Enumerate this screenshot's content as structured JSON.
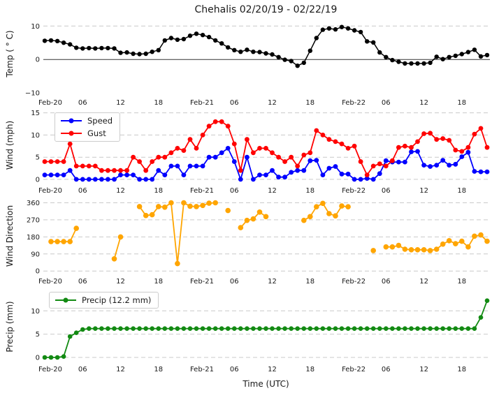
{
  "title": "Chehalis 02/20/19 - 02/22/19",
  "x_axis": {
    "label": "Time (UTC)",
    "tick_hours": [
      0,
      6,
      12,
      18,
      24,
      30,
      36,
      42,
      48,
      54,
      60,
      66
    ],
    "tick_labels": [
      "Feb-20",
      "06",
      "12",
      "18",
      "Feb-21",
      "06",
      "12",
      "18",
      "Feb-22",
      "06",
      "12",
      "18"
    ],
    "x_unit": "hours since Feb-20 00:00 UTC, 1 point per hour"
  },
  "colors": {
    "temp": "#000000",
    "speed": "#0000ff",
    "gust": "#ff0000",
    "wind_direction": "#ffa500",
    "precip": "#128a12",
    "grid": "#c9c9c9",
    "zero_line": "#333333",
    "text": "#191919",
    "legend_border": "#cccccc"
  },
  "chart_data": [
    {
      "id": "temp",
      "type": "line",
      "ylabel": "Temp ( ° C)",
      "yticks": [
        -10,
        0,
        10
      ],
      "ylim": [
        -10,
        13.2
      ],
      "grid_ticks": [
        10
      ],
      "zero_line": 0,
      "legend": null,
      "series": [
        {
          "name": "Temp",
          "legend_label": "Temp",
          "color": "#000000",
          "values": [
            5.6,
            5.7,
            5.5,
            5.0,
            4.5,
            3.5,
            3.3,
            3.4,
            3.3,
            3.4,
            3.4,
            3.3,
            2.0,
            2.1,
            1.7,
            1.6,
            1.7,
            2.3,
            2.8,
            5.7,
            6.4,
            5.9,
            6.1,
            7.1,
            7.7,
            7.3,
            6.7,
            5.7,
            4.8,
            3.6,
            2.8,
            2.3,
            2.9,
            2.3,
            2.2,
            1.8,
            1.5,
            0.7,
            -0.1,
            -0.5,
            -1.9,
            -1.0,
            2.6,
            6.4,
            8.9,
            9.3,
            9.0,
            9.7,
            9.3,
            8.7,
            8.2,
            5.4,
            5.1,
            2.1,
            0.7,
            -0.2,
            -0.7,
            -1.2,
            -1.2,
            -1.2,
            -1.2,
            -1.0,
            0.8,
            0.1,
            0.7,
            1.1,
            1.6,
            2.2,
            2.9,
            0.9,
            1.3
          ]
        }
      ]
    },
    {
      "id": "wind",
      "type": "line",
      "ylabel": "Wind (mph)",
      "yticks": [
        0,
        5,
        10,
        15
      ],
      "ylim": [
        -0.8,
        16.2
      ],
      "grid_ticks": [
        0,
        5,
        10,
        15
      ],
      "zero_line": null,
      "legend": {
        "position": "upper-left",
        "labels": [
          "Speed",
          "Gust"
        ]
      },
      "series": [
        {
          "name": "Speed",
          "legend_label": "Speed",
          "color": "#0000ff",
          "values": [
            1,
            1,
            1,
            1,
            2,
            0,
            0,
            0,
            0,
            0,
            0,
            0,
            1,
            1,
            1,
            0,
            0,
            0,
            2,
            1,
            3,
            3,
            1,
            3,
            3,
            3,
            5,
            5,
            6,
            7,
            4,
            0,
            5,
            0,
            1,
            1,
            2,
            0.5,
            0.5,
            1.6,
            2,
            2,
            4.2,
            4.3,
            1,
            2.5,
            2.9,
            1.2,
            1.2,
            0,
            0,
            0.2,
            0,
            1.3,
            4.2,
            3.9,
            3.9,
            3.9,
            6.2,
            6.3,
            3.2,
            2.9,
            3.2,
            4.3,
            3.2,
            3.4,
            5.1,
            6.1,
            1.8,
            1.7,
            1.7
          ]
        },
        {
          "name": "Gust",
          "legend_label": "Gust",
          "color": "#ff0000",
          "values": [
            4,
            4,
            4,
            4,
            8,
            3,
            3,
            3,
            3,
            2,
            2,
            2,
            2,
            2,
            5,
            4,
            2,
            4,
            5,
            5,
            6,
            7,
            6.5,
            9,
            7,
            10,
            12,
            13,
            13,
            12,
            8,
            2,
            9,
            6,
            7,
            7,
            6,
            5,
            4,
            5,
            3,
            5.5,
            6,
            11,
            10,
            9,
            8.5,
            8,
            7,
            7.5,
            4,
            1,
            3,
            3.5,
            3,
            4.2,
            7.2,
            7.5,
            7.2,
            8.5,
            10.3,
            10.4,
            9,
            9.2,
            8.8,
            6.6,
            6.3,
            7.2,
            10.2,
            11.5,
            7.2
          ]
        }
      ]
    },
    {
      "id": "wind_direction",
      "type": "line-with-gaps",
      "ylabel": "Wind Direction",
      "yticks": [
        0,
        90,
        180,
        270,
        360
      ],
      "ylim": [
        -14,
        384
      ],
      "grid_ticks": [
        0,
        90,
        180,
        270,
        360
      ],
      "zero_line": null,
      "legend": null,
      "series": [
        {
          "name": "Wind Direction",
          "legend_label": "Wind Direction",
          "color": "#ffa500",
          "values": [
            null,
            155,
            155,
            155,
            155,
            225,
            null,
            null,
            null,
            null,
            null,
            64,
            180,
            null,
            null,
            340,
            293,
            297,
            340,
            337,
            360,
            39,
            360,
            342,
            340,
            346,
            358,
            360,
            null,
            319,
            null,
            229,
            267,
            275,
            311,
            287,
            null,
            null,
            null,
            null,
            null,
            267,
            287,
            339,
            357,
            303,
            291,
            343,
            339,
            null,
            null,
            null,
            108,
            null,
            127,
            127,
            135,
            115,
            112,
            112,
            112,
            108,
            115,
            142,
            160,
            144,
            157,
            127,
            184,
            190,
            157
          ]
        }
      ]
    },
    {
      "id": "precip",
      "type": "line",
      "ylabel": "Precip (mm)",
      "yticks": [
        0,
        5,
        10
      ],
      "ylim": [
        -0.9,
        14.1
      ],
      "grid_ticks": [
        0,
        5,
        10
      ],
      "zero_line": null,
      "legend": {
        "position": "upper-left",
        "labels": [
          "Precip (12.2 mm)"
        ]
      },
      "total_mm": 12.2,
      "series": [
        {
          "name": "Precip",
          "legend_label": "Precip (12.2 mm)",
          "color": "#128a12",
          "values": [
            0,
            0,
            0,
            0.2,
            4.5,
            5.3,
            6,
            6.2,
            6.2,
            6.2,
            6.2,
            6.2,
            6.2,
            6.2,
            6.2,
            6.2,
            6.2,
            6.2,
            6.2,
            6.2,
            6.2,
            6.2,
            6.2,
            6.2,
            6.2,
            6.2,
            6.2,
            6.2,
            6.2,
            6.2,
            6.2,
            6.2,
            6.2,
            6.2,
            6.2,
            6.2,
            6.2,
            6.2,
            6.2,
            6.2,
            6.2,
            6.2,
            6.2,
            6.2,
            6.2,
            6.2,
            6.2,
            6.2,
            6.2,
            6.2,
            6.2,
            6.2,
            6.2,
            6.2,
            6.2,
            6.2,
            6.2,
            6.2,
            6.2,
            6.2,
            6.2,
            6.2,
            6.2,
            6.2,
            6.2,
            6.2,
            6.2,
            6.2,
            6.2,
            8.6,
            12.2
          ]
        }
      ]
    }
  ]
}
